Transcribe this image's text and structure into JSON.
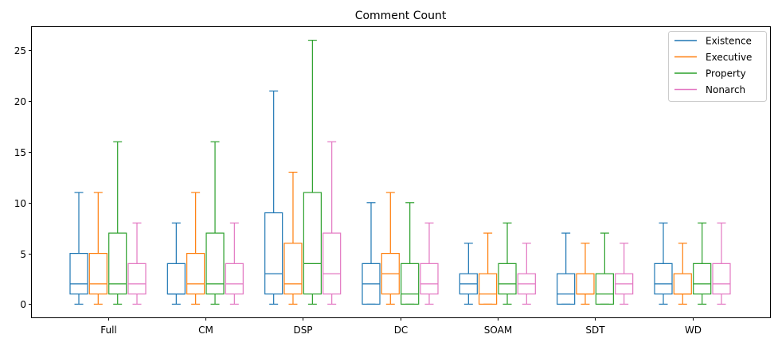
{
  "chart_data": {
    "type": "box",
    "title": "Comment Count",
    "xlabel": "",
    "ylabel": "",
    "ylim": [
      -1.3,
      27.3
    ],
    "yticks": [
      0,
      5,
      10,
      15,
      20,
      25
    ],
    "grid": false,
    "legend_position": "top-right",
    "categories": [
      "Full",
      "CM",
      "DSP",
      "DC",
      "SOAM",
      "SDT",
      "WD"
    ],
    "series": [
      {
        "name": "Existence",
        "color": "#1f77b4",
        "boxes": [
          {
            "whislo": 0,
            "q1": 1,
            "med": 2,
            "q3": 5,
            "whishi": 11
          },
          {
            "whislo": 0,
            "q1": 1,
            "med": 1,
            "q3": 4,
            "whishi": 8
          },
          {
            "whislo": 0,
            "q1": 1,
            "med": 3,
            "q3": 9,
            "whishi": 21
          },
          {
            "whislo": 0,
            "q1": 0,
            "med": 2,
            "q3": 4,
            "whishi": 10
          },
          {
            "whislo": 0,
            "q1": 1,
            "med": 2,
            "q3": 3,
            "whishi": 6
          },
          {
            "whislo": 0,
            "q1": 0,
            "med": 1,
            "q3": 3,
            "whishi": 7
          },
          {
            "whislo": 0,
            "q1": 1,
            "med": 2,
            "q3": 4,
            "whishi": 8
          }
        ]
      },
      {
        "name": "Executive",
        "color": "#ff7f0e",
        "boxes": [
          {
            "whislo": 0,
            "q1": 1,
            "med": 2,
            "q3": 5,
            "whishi": 11
          },
          {
            "whislo": 0,
            "q1": 1,
            "med": 2,
            "q3": 5,
            "whishi": 11
          },
          {
            "whislo": 0,
            "q1": 1,
            "med": 2,
            "q3": 6,
            "whishi": 13
          },
          {
            "whislo": 0,
            "q1": 1,
            "med": 3,
            "q3": 5,
            "whishi": 11
          },
          {
            "whislo": 0,
            "q1": 0,
            "med": 1,
            "q3": 3,
            "whishi": 7
          },
          {
            "whislo": 0,
            "q1": 1,
            "med": 1,
            "q3": 3,
            "whishi": 6
          },
          {
            "whislo": 0,
            "q1": 1,
            "med": 1,
            "q3": 3,
            "whishi": 6
          }
        ]
      },
      {
        "name": "Property",
        "color": "#2ca02c",
        "boxes": [
          {
            "whislo": 0,
            "q1": 1,
            "med": 2,
            "q3": 7,
            "whishi": 16
          },
          {
            "whislo": 0,
            "q1": 1,
            "med": 2,
            "q3": 7,
            "whishi": 16
          },
          {
            "whislo": 0,
            "q1": 1,
            "med": 4,
            "q3": 11,
            "whishi": 26
          },
          {
            "whislo": 0,
            "q1": 0,
            "med": 1,
            "q3": 4,
            "whishi": 10
          },
          {
            "whislo": 0,
            "q1": 1,
            "med": 2,
            "q3": 4,
            "whishi": 8
          },
          {
            "whislo": 0,
            "q1": 0,
            "med": 1,
            "q3": 3,
            "whishi": 7
          },
          {
            "whislo": 0,
            "q1": 1,
            "med": 2,
            "q3": 4,
            "whishi": 8
          }
        ]
      },
      {
        "name": "Nonarch",
        "color": "#e377c2",
        "boxes": [
          {
            "whislo": 0,
            "q1": 1,
            "med": 2,
            "q3": 4,
            "whishi": 8
          },
          {
            "whislo": 0,
            "q1": 1,
            "med": 2,
            "q3": 4,
            "whishi": 8
          },
          {
            "whislo": 0,
            "q1": 1,
            "med": 3,
            "q3": 7,
            "whishi": 16
          },
          {
            "whislo": 0,
            "q1": 1,
            "med": 2,
            "q3": 4,
            "whishi": 8
          },
          {
            "whislo": 0,
            "q1": 1,
            "med": 2,
            "q3": 3,
            "whishi": 6
          },
          {
            "whislo": 0,
            "q1": 1,
            "med": 2,
            "q3": 3,
            "whishi": 6
          },
          {
            "whislo": 0,
            "q1": 1,
            "med": 2,
            "q3": 4,
            "whishi": 8
          }
        ]
      }
    ]
  }
}
